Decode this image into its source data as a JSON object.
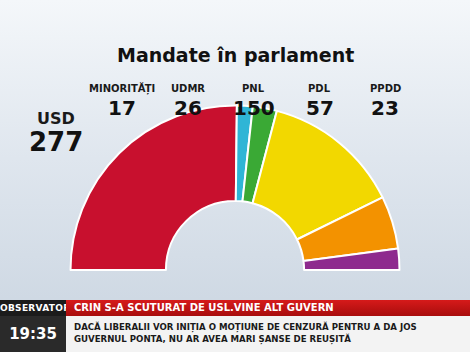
{
  "chart_data": {
    "type": "pie",
    "title": "Mandate în parlament",
    "categories": [
      "USD",
      "MINORITĂȚI",
      "UDMR",
      "PNL",
      "PDL",
      "PPDD"
    ],
    "values": [
      277,
      17,
      26,
      150,
      57,
      23
    ],
    "colors": [
      "#c8102e",
      "#2fb5d6",
      "#3aa935",
      "#f2d800",
      "#f39200",
      "#8e2a8e"
    ],
    "data_labels": true
  },
  "banner": {
    "show": "OBSERVATOR",
    "time": "19:35",
    "headline": "CRIN S-A SCUTURAT DE USL.VINE ALT GUVERN",
    "subtitle": "DACĂ LIBERALII VOR INIȚIA O MOȚIUNE DE CENZURĂ PENTRU A DA JOS GUVERNUL PONTA, NU AR AVEA MARI ȘANSE DE REUȘITĂ"
  }
}
